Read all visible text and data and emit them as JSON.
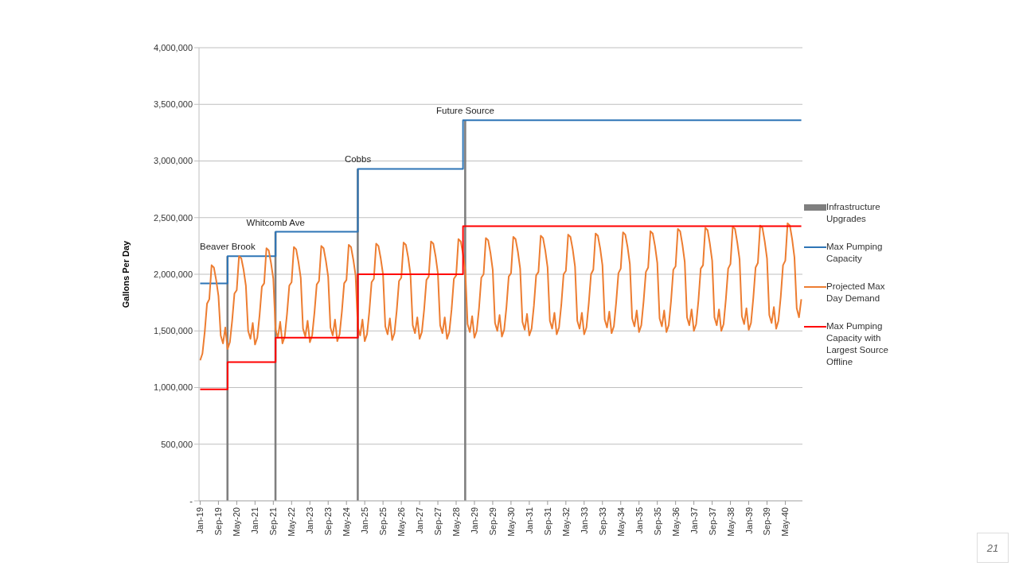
{
  "chart_data": {
    "type": "line",
    "ylabel": "Gallons Per Day",
    "categories": [
      "Jan-19",
      null,
      null,
      null,
      null,
      null,
      null,
      null,
      "Sep-19",
      null,
      null,
      null,
      null,
      null,
      null,
      null,
      "May-20",
      null,
      null,
      null,
      null,
      null,
      null,
      null,
      "Jan-21",
      null,
      null,
      null,
      null,
      null,
      null,
      null,
      "Sep-21",
      null,
      null,
      null,
      null,
      null,
      null,
      null,
      "May-22",
      null,
      null,
      null,
      null,
      null,
      null,
      null,
      "Jan-23",
      null,
      null,
      null,
      null,
      null,
      null,
      null,
      "Sep-23",
      null,
      null,
      null,
      null,
      null,
      null,
      null,
      "May-24",
      null,
      null,
      null,
      null,
      null,
      null,
      null,
      "Jan-25",
      null,
      null,
      null,
      null,
      null,
      null,
      null,
      "Sep-25",
      null,
      null,
      null,
      null,
      null,
      null,
      null,
      "May-26",
      null,
      null,
      null,
      null,
      null,
      null,
      null,
      "Jan-27",
      null,
      null,
      null,
      null,
      null,
      null,
      null,
      "Sep-27",
      null,
      null,
      null,
      null,
      null,
      null,
      null,
      "May-28",
      null,
      null,
      null,
      null,
      null,
      null,
      null,
      "Jan-29",
      null,
      null,
      null,
      null,
      null,
      null,
      null,
      "Sep-29",
      null,
      null,
      null,
      null,
      null,
      null,
      null,
      "May-30",
      null,
      null,
      null,
      null,
      null,
      null,
      null,
      "Jan-31",
      null,
      null,
      null,
      null,
      null,
      null,
      null,
      "Sep-31",
      null,
      null,
      null,
      null,
      null,
      null,
      null,
      "May-32",
      null,
      null,
      null,
      null,
      null,
      null,
      null,
      "Jan-33",
      null,
      null,
      null,
      null,
      null,
      null,
      null,
      "Sep-33",
      null,
      null,
      null,
      null,
      null,
      null,
      null,
      "May-34",
      null,
      null,
      null,
      null,
      null,
      null,
      null,
      "Jan-35",
      null,
      null,
      null,
      null,
      null,
      null,
      null,
      "Sep-35",
      null,
      null,
      null,
      null,
      null,
      null,
      null,
      "May-36",
      null,
      null,
      null,
      null,
      null,
      null,
      null,
      "Jan-37",
      null,
      null,
      null,
      null,
      null,
      null,
      null,
      "Sep-37",
      null,
      null,
      null,
      null,
      null,
      null,
      null,
      "May-38",
      null,
      null,
      null,
      null,
      null,
      null,
      null,
      "Jan-39",
      null,
      null,
      null,
      null,
      null,
      null,
      null,
      "Sep-39",
      null,
      null,
      null,
      null,
      null,
      null,
      null,
      "May-40",
      null,
      null,
      null,
      null,
      null,
      null,
      null
    ],
    "series": [
      {
        "name": "Infrastructure Upgrades",
        "type": "bar",
        "color": "#7f7f7f",
        "values": [
          null,
          null,
          null,
          null,
          null,
          null,
          null,
          null,
          null,
          null,
          null,
          null,
          2160000,
          null,
          null,
          null,
          null,
          null,
          null,
          null,
          null,
          null,
          null,
          null,
          null,
          null,
          null,
          null,
          null,
          null,
          null,
          null,
          null,
          2375000,
          null,
          null,
          null,
          null,
          null,
          null,
          null,
          null,
          null,
          null,
          null,
          null,
          null,
          null,
          null,
          null,
          null,
          null,
          null,
          null,
          null,
          null,
          null,
          null,
          null,
          null,
          null,
          null,
          null,
          null,
          null,
          null,
          null,
          null,
          null,
          2930000,
          null,
          null,
          null,
          null,
          null,
          null,
          null,
          null,
          null,
          null,
          null,
          null,
          null,
          null,
          null,
          null,
          null,
          null,
          null,
          null,
          null,
          null,
          null,
          null,
          null,
          null,
          null,
          null,
          null,
          null,
          null,
          null,
          null,
          null,
          null,
          null,
          null,
          null,
          null,
          null,
          null,
          null,
          null,
          null,
          null,
          null,
          3360000,
          null,
          null,
          null,
          null,
          null,
          null,
          null,
          null,
          null,
          null,
          null,
          null,
          null,
          null,
          null,
          null,
          null,
          null,
          null,
          null,
          null,
          null,
          null,
          null,
          null,
          null,
          null,
          null,
          null,
          null,
          null,
          null,
          null,
          null,
          null,
          null,
          null,
          null,
          null,
          null,
          null,
          null,
          null,
          null,
          null,
          null,
          null,
          null,
          null,
          null,
          null,
          null,
          null,
          null,
          null,
          null,
          null,
          null,
          null,
          null,
          null,
          null,
          null,
          null,
          null,
          null,
          null,
          null,
          null,
          null,
          null,
          null,
          null,
          null,
          null,
          null,
          null,
          null,
          null,
          null,
          null,
          null,
          null,
          null,
          null,
          null,
          null,
          null,
          null,
          null,
          null,
          null,
          null,
          null,
          null,
          null,
          null,
          null,
          null,
          null,
          null,
          null,
          null,
          null,
          null,
          null,
          null,
          null,
          null,
          null,
          null,
          null,
          null,
          null,
          null,
          null,
          null,
          null,
          null,
          null,
          null,
          null,
          null,
          null,
          null,
          null,
          null,
          null,
          null,
          null,
          null,
          null,
          null,
          null,
          null,
          null,
          null,
          null,
          null,
          null,
          null,
          null,
          null,
          null,
          null,
          null,
          null
        ]
      },
      {
        "name": "Max Pumping Capacity",
        "type": "step",
        "color": "#2e75b6",
        "values": [
          1920000,
          1920000,
          1920000,
          1920000,
          1920000,
          1920000,
          1920000,
          1920000,
          1920000,
          1920000,
          1920000,
          1920000,
          2160000,
          2160000,
          2160000,
          2160000,
          2160000,
          2160000,
          2160000,
          2160000,
          2160000,
          2160000,
          2160000,
          2160000,
          2160000,
          2160000,
          2160000,
          2160000,
          2160000,
          2160000,
          2160000,
          2160000,
          2160000,
          2375000,
          2375000,
          2375000,
          2375000,
          2375000,
          2375000,
          2375000,
          2375000,
          2375000,
          2375000,
          2375000,
          2375000,
          2375000,
          2375000,
          2375000,
          2375000,
          2375000,
          2375000,
          2375000,
          2375000,
          2375000,
          2375000,
          2375000,
          2375000,
          2375000,
          2375000,
          2375000,
          2375000,
          2375000,
          2375000,
          2375000,
          2375000,
          2375000,
          2375000,
          2375000,
          2375000,
          2930000,
          2930000,
          2930000,
          2930000,
          2930000,
          2930000,
          2930000,
          2930000,
          2930000,
          2930000,
          2930000,
          2930000,
          2930000,
          2930000,
          2930000,
          2930000,
          2930000,
          2930000,
          2930000,
          2930000,
          2930000,
          2930000,
          2930000,
          2930000,
          2930000,
          2930000,
          2930000,
          2930000,
          2930000,
          2930000,
          2930000,
          2930000,
          2930000,
          2930000,
          2930000,
          2930000,
          2930000,
          2930000,
          2930000,
          2930000,
          2930000,
          2930000,
          2930000,
          2930000,
          2930000,
          2930000,
          3360000,
          3360000,
          3360000,
          3360000,
          3360000,
          3360000,
          3360000,
          3360000,
          3360000,
          3360000,
          3360000,
          3360000,
          3360000,
          3360000,
          3360000,
          3360000,
          3360000,
          3360000,
          3360000,
          3360000,
          3360000,
          3360000,
          3360000,
          3360000,
          3360000,
          3360000,
          3360000,
          3360000,
          3360000,
          3360000,
          3360000,
          3360000,
          3360000,
          3360000,
          3360000,
          3360000,
          3360000,
          3360000,
          3360000,
          3360000,
          3360000,
          3360000,
          3360000,
          3360000,
          3360000,
          3360000,
          3360000,
          3360000,
          3360000,
          3360000,
          3360000,
          3360000,
          3360000,
          3360000,
          3360000,
          3360000,
          3360000,
          3360000,
          3360000,
          3360000,
          3360000,
          3360000,
          3360000,
          3360000,
          3360000,
          3360000,
          3360000,
          3360000,
          3360000,
          3360000,
          3360000,
          3360000,
          3360000,
          3360000,
          3360000,
          3360000,
          3360000,
          3360000,
          3360000,
          3360000,
          3360000,
          3360000,
          3360000,
          3360000,
          3360000,
          3360000,
          3360000,
          3360000,
          3360000,
          3360000,
          3360000,
          3360000,
          3360000,
          3360000,
          3360000,
          3360000,
          3360000,
          3360000,
          3360000,
          3360000,
          3360000,
          3360000,
          3360000,
          3360000,
          3360000,
          3360000,
          3360000,
          3360000,
          3360000,
          3360000,
          3360000,
          3360000,
          3360000,
          3360000,
          3360000,
          3360000,
          3360000,
          3360000,
          3360000,
          3360000,
          3360000,
          3360000,
          3360000,
          3360000,
          3360000,
          3360000,
          3360000,
          3360000,
          3360000,
          3360000,
          3360000,
          3360000,
          3360000,
          3360000,
          3360000,
          3360000,
          3360000,
          3360000,
          3360000,
          3360000,
          3360000,
          3360000,
          3360000,
          3360000,
          3360000,
          3360000,
          3360000,
          3360000,
          3360000
        ]
      },
      {
        "name": "Projected Max Day Demand",
        "type": "line",
        "color": "#ed7d31",
        "values": [
          1240000,
          1300000,
          1490000,
          1740000,
          1780000,
          2080000,
          2060000,
          1950000,
          1810000,
          1460000,
          1390000,
          1530000,
          1340000,
          1400000,
          1590000,
          1830000,
          1860000,
          2160000,
          2140000,
          2040000,
          1900000,
          1500000,
          1430000,
          1570000,
          1380000,
          1440000,
          1640000,
          1890000,
          1920000,
          2230000,
          2210000,
          2100000,
          1960000,
          1510000,
          1440000,
          1580000,
          1390000,
          1450000,
          1650000,
          1900000,
          1930000,
          2240000,
          2220000,
          2110000,
          1970000,
          1520000,
          1450000,
          1590000,
          1400000,
          1460000,
          1660000,
          1910000,
          1940000,
          2250000,
          2230000,
          2120000,
          1980000,
          1530000,
          1460000,
          1600000,
          1410000,
          1470000,
          1670000,
          1920000,
          1950000,
          2260000,
          2240000,
          2130000,
          1990000,
          1530000,
          1460000,
          1600000,
          1410000,
          1470000,
          1670000,
          1930000,
          1960000,
          2270000,
          2250000,
          2140000,
          2000000,
          1540000,
          1470000,
          1610000,
          1420000,
          1480000,
          1680000,
          1940000,
          1970000,
          2280000,
          2260000,
          2150000,
          2000000,
          1550000,
          1480000,
          1620000,
          1430000,
          1490000,
          1690000,
          1950000,
          1980000,
          2290000,
          2270000,
          2160000,
          2010000,
          1550000,
          1480000,
          1620000,
          1430000,
          1490000,
          1690000,
          1960000,
          1990000,
          2310000,
          2290000,
          2180000,
          2030000,
          1560000,
          1490000,
          1630000,
          1440000,
          1500000,
          1700000,
          1970000,
          2000000,
          2320000,
          2300000,
          2190000,
          2040000,
          1570000,
          1500000,
          1640000,
          1450000,
          1510000,
          1710000,
          1980000,
          2010000,
          2330000,
          2310000,
          2200000,
          2050000,
          1580000,
          1510000,
          1650000,
          1460000,
          1520000,
          1720000,
          1990000,
          2020000,
          2340000,
          2320000,
          2210000,
          2060000,
          1590000,
          1520000,
          1660000,
          1470000,
          1530000,
          1730000,
          2000000,
          2030000,
          2350000,
          2330000,
          2220000,
          2070000,
          1590000,
          1520000,
          1660000,
          1470000,
          1530000,
          1740000,
          2000000,
          2040000,
          2360000,
          2340000,
          2230000,
          2080000,
          1600000,
          1530000,
          1670000,
          1480000,
          1540000,
          1750000,
          2010000,
          2050000,
          2370000,
          2350000,
          2240000,
          2090000,
          1610000,
          1540000,
          1680000,
          1490000,
          1550000,
          1760000,
          2020000,
          2060000,
          2380000,
          2360000,
          2250000,
          2100000,
          1610000,
          1540000,
          1680000,
          1490000,
          1550000,
          1760000,
          2040000,
          2070000,
          2400000,
          2380000,
          2260000,
          2110000,
          1620000,
          1550000,
          1690000,
          1500000,
          1560000,
          1770000,
          2050000,
          2080000,
          2410000,
          2390000,
          2270000,
          2120000,
          1620000,
          1550000,
          1690000,
          1500000,
          1560000,
          1780000,
          2050000,
          2090000,
          2420000,
          2400000,
          2280000,
          2130000,
          1630000,
          1560000,
          1700000,
          1510000,
          1570000,
          1790000,
          2060000,
          2100000,
          2430000,
          2410000,
          2290000,
          2140000,
          1640000,
          1570000,
          1710000,
          1520000,
          1590000,
          1800000,
          2080000,
          2120000,
          2450000,
          2430000,
          2310000,
          2150000,
          1700000,
          1620000,
          1780000
        ]
      },
      {
        "name": "Max Pumping Capacity with Largest Source Offline",
        "type": "step",
        "color": "#ff0000",
        "values": [
          985000,
          985000,
          985000,
          985000,
          985000,
          985000,
          985000,
          985000,
          985000,
          985000,
          985000,
          985000,
          1225000,
          1225000,
          1225000,
          1225000,
          1225000,
          1225000,
          1225000,
          1225000,
          1225000,
          1225000,
          1225000,
          1225000,
          1225000,
          1225000,
          1225000,
          1225000,
          1225000,
          1225000,
          1225000,
          1225000,
          1225000,
          1440000,
          1440000,
          1440000,
          1440000,
          1440000,
          1440000,
          1440000,
          1440000,
          1440000,
          1440000,
          1440000,
          1440000,
          1440000,
          1440000,
          1440000,
          1440000,
          1440000,
          1440000,
          1440000,
          1440000,
          1440000,
          1440000,
          1440000,
          1440000,
          1440000,
          1440000,
          1440000,
          1440000,
          1440000,
          1440000,
          1440000,
          1440000,
          1440000,
          1440000,
          1440000,
          1440000,
          2000000,
          2000000,
          2000000,
          2000000,
          2000000,
          2000000,
          2000000,
          2000000,
          2000000,
          2000000,
          2000000,
          2000000,
          2000000,
          2000000,
          2000000,
          2000000,
          2000000,
          2000000,
          2000000,
          2000000,
          2000000,
          2000000,
          2000000,
          2000000,
          2000000,
          2000000,
          2000000,
          2000000,
          2000000,
          2000000,
          2000000,
          2000000,
          2000000,
          2000000,
          2000000,
          2000000,
          2000000,
          2000000,
          2000000,
          2000000,
          2000000,
          2000000,
          2000000,
          2000000,
          2000000,
          2000000,
          2425000,
          2425000,
          2425000,
          2425000,
          2425000,
          2425000,
          2425000,
          2425000,
          2425000,
          2425000,
          2425000,
          2425000,
          2425000,
          2425000,
          2425000,
          2425000,
          2425000,
          2425000,
          2425000,
          2425000,
          2425000,
          2425000,
          2425000,
          2425000,
          2425000,
          2425000,
          2425000,
          2425000,
          2425000,
          2425000,
          2425000,
          2425000,
          2425000,
          2425000,
          2425000,
          2425000,
          2425000,
          2425000,
          2425000,
          2425000,
          2425000,
          2425000,
          2425000,
          2425000,
          2425000,
          2425000,
          2425000,
          2425000,
          2425000,
          2425000,
          2425000,
          2425000,
          2425000,
          2425000,
          2425000,
          2425000,
          2425000,
          2425000,
          2425000,
          2425000,
          2425000,
          2425000,
          2425000,
          2425000,
          2425000,
          2425000,
          2425000,
          2425000,
          2425000,
          2425000,
          2425000,
          2425000,
          2425000,
          2425000,
          2425000,
          2425000,
          2425000,
          2425000,
          2425000,
          2425000,
          2425000,
          2425000,
          2425000,
          2425000,
          2425000,
          2425000,
          2425000,
          2425000,
          2425000,
          2425000,
          2425000,
          2425000,
          2425000,
          2425000,
          2425000,
          2425000,
          2425000,
          2425000,
          2425000,
          2425000,
          2425000,
          2425000,
          2425000,
          2425000,
          2425000,
          2425000,
          2425000,
          2425000,
          2425000,
          2425000,
          2425000,
          2425000,
          2425000,
          2425000,
          2425000,
          2425000,
          2425000,
          2425000,
          2425000,
          2425000,
          2425000,
          2425000,
          2425000,
          2425000,
          2425000,
          2425000,
          2425000,
          2425000,
          2425000,
          2425000,
          2425000,
          2425000,
          2425000,
          2425000,
          2425000,
          2425000,
          2425000,
          2425000,
          2425000,
          2425000,
          2425000,
          2425000,
          2425000,
          2425000,
          2425000,
          2425000,
          2425000,
          2425000,
          2425000
        ]
      }
    ],
    "ylim": [
      0,
      4000000
    ],
    "yticks": [
      {
        "value": 0,
        "label": "-"
      },
      {
        "value": 500000,
        "label": "500,000"
      },
      {
        "value": 1000000,
        "label": "1,000,000"
      },
      {
        "value": 1500000,
        "label": "1,500,000"
      },
      {
        "value": 2000000,
        "label": "2,000,000"
      },
      {
        "value": 2500000,
        "label": "2,500,000"
      },
      {
        "value": 3000000,
        "label": "3,000,000"
      },
      {
        "value": 3500000,
        "label": "3,500,000"
      },
      {
        "value": 4000000,
        "label": "4,000,000"
      }
    ],
    "grid": "y",
    "legend": "right",
    "marker": "none",
    "annotations": [
      {
        "text": "Beaver Brook",
        "y": 2160000
      },
      {
        "text": "Whitcomb Ave",
        "y": 2375000
      },
      {
        "text": "Cobbs",
        "y": 2930000
      },
      {
        "text": "Future Source",
        "y": 3360000
      },
      "21"
    ]
  }
}
